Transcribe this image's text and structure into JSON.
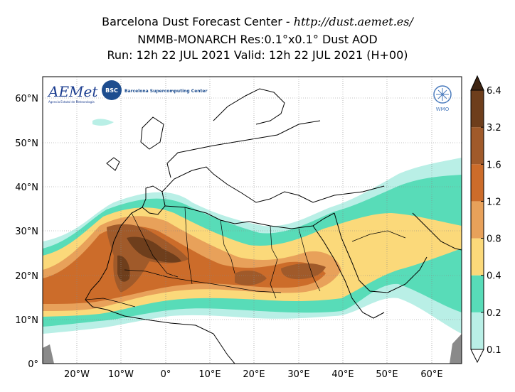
{
  "title": {
    "line1_text": "Barcelona Dust Forecast Center - ",
    "line1_url": "http://dust.aemet.es/",
    "line2": "NMMB-MONARCH   Res:0.1°x0.1°   Dust AOD",
    "line3": "Run: 12h 22 JUL 2021   Valid: 12h 22 JUL 2021 (H+00)"
  },
  "map": {
    "lat_labels": [
      "60°N",
      "50°N",
      "40°N",
      "30°N",
      "20°N",
      "10°N",
      "0°"
    ],
    "lat_values": [
      60,
      50,
      40,
      30,
      20,
      10,
      0
    ],
    "lon_labels": [
      "20°W",
      "10°W",
      "0°",
      "10°E",
      "20°E",
      "30°E",
      "40°E",
      "50°E",
      "60°E"
    ],
    "lon_values": [
      -20,
      -10,
      0,
      10,
      20,
      30,
      40,
      50,
      60
    ]
  },
  "colorbar": {
    "ticks": [
      "0.1",
      "0.2",
      "0.4",
      "0.8",
      "1.2",
      "1.6",
      "3.2",
      "6.4"
    ],
    "colors": [
      "#b9efe6",
      "#58dcb8",
      "#fbd97a",
      "#e8a15a",
      "#cc6c2a",
      "#a05a2a",
      "#6e3e1c",
      "#3e2412"
    ]
  },
  "logos": {
    "aemet": "AEMet",
    "aemet_sub": "Agencia Estatal de Meteorología",
    "bsc_badge": "BSC",
    "bsc_text": "Barcelona Supercomputing Center",
    "wmo": "WMO"
  }
}
